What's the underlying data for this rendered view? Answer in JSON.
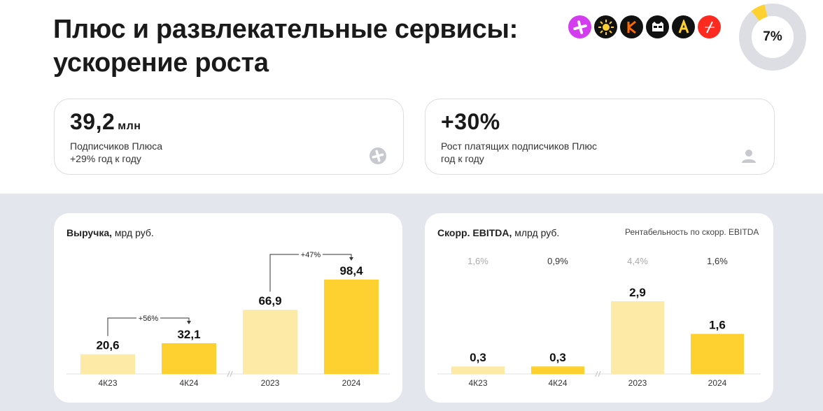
{
  "header": {
    "title_line1": "Плюс и развлекательные сервисы:",
    "title_line2": "ускорение роста",
    "share_value": "7%",
    "share_fraction": 0.07
  },
  "logos": [
    {
      "icon": "plus-logo-icon",
      "color": "#d43cf0"
    },
    {
      "icon": "sun-logo-icon",
      "color": "#111111"
    },
    {
      "icon": "kinopoisk-logo-icon",
      "color": "#111111"
    },
    {
      "icon": "cat-logo-icon",
      "color": "#111111"
    },
    {
      "icon": "letter-a-logo-icon",
      "color": "#111111"
    },
    {
      "icon": "afisha-logo-icon",
      "color": "#ff2a1f"
    }
  ],
  "kpis": [
    {
      "value": "39,2",
      "unit": "млн",
      "line1": "Подписчиков Плюса",
      "line2": "+29% год к году",
      "icon": "plus-icon"
    },
    {
      "value": "+30%",
      "unit": "",
      "line1": "Рост платящих подписчиков Плюс",
      "line2": "год к году",
      "icon": "user-icon"
    }
  ],
  "colors": {
    "bar_light": "#fdeaa6",
    "bar_dark": "#ffd130",
    "band": "#e4e6ee",
    "muted": "#999999"
  },
  "chart_data": [
    {
      "type": "bar",
      "title": "Выручка,",
      "title_suffix": "мрд руб.",
      "categories": [
        "4К23",
        "4К24",
        "2023",
        "2024"
      ],
      "values": [
        20.6,
        32.1,
        66.9,
        98.4
      ],
      "labels": [
        "20,6",
        "32,1",
        "66,9",
        "98,4"
      ],
      "bar_colors": [
        "#fdeaa6",
        "#ffd130",
        "#fdeaa6",
        "#ffd130"
      ],
      "ylim": [
        0,
        98.4
      ],
      "annotations": [
        {
          "text": "+56%",
          "from": 0,
          "to": 1
        },
        {
          "text": "+47%",
          "from": 2,
          "to": 3
        }
      ]
    },
    {
      "type": "bar",
      "title": "Скорр. EBITDA,",
      "title_suffix": "млрд руб.",
      "subtitle": "Рентабельность по скорр. EBITDA",
      "categories": [
        "4К23",
        "4К24",
        "2023",
        "2024"
      ],
      "values": [
        0.3,
        0.3,
        2.9,
        1.6
      ],
      "labels": [
        "0,3",
        "0,3",
        "2,9",
        "1,6"
      ],
      "margins": [
        "1,6%",
        "0,9%",
        "4,4%",
        "1,6%"
      ],
      "margin_colors": [
        "#aaaaaa",
        "#333333",
        "#aaaaaa",
        "#333333"
      ],
      "bar_colors": [
        "#fdeaa6",
        "#ffd130",
        "#fdeaa6",
        "#ffd130"
      ],
      "ylim": [
        0,
        2.9
      ]
    }
  ]
}
